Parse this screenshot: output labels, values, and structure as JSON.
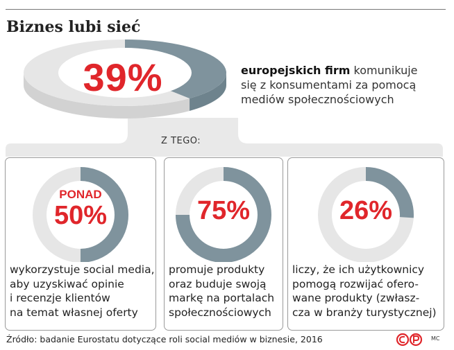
{
  "title": "Biznes lubi sieć",
  "main": {
    "percent": "39%",
    "value": 39,
    "desc_bold": "europejskich firm",
    "desc_rest": " komunikuje",
    "desc_line2": "się z konsumentami za pomocą",
    "desc_line3": "mediów społecznościowych"
  },
  "subheader": "Z TEGO:",
  "panels": [
    {
      "prefix": "PONAD",
      "percent": "50%",
      "value": 50,
      "lines": [
        "wykorzystuje social media,",
        "aby uzyskiwać opinie",
        "i recenzje klientów",
        "na temat własnej oferty"
      ]
    },
    {
      "prefix": "",
      "percent": "75%",
      "value": 75,
      "lines": [
        "promuje produkty",
        "oraz buduje swoją",
        "markę na portalach",
        "społecznościowych"
      ]
    },
    {
      "prefix": "",
      "percent": "26%",
      "value": 26,
      "lines": [
        "liczy, że ich użytkownicy",
        "pomogą rozwijać ofero-",
        "wane produkty (zwłasz-",
        "cza w branży turystycznej)"
      ]
    }
  ],
  "source": "Źródło: badanie Eurostatu dotyczące roli social mediów w biznesie, 2016",
  "credit": "MC",
  "colors": {
    "accent": "#e0262b",
    "filled": "#7f939d",
    "empty": "#e6e6e6",
    "panel_bg": "#e9e9e9"
  },
  "chart_data": [
    {
      "type": "pie",
      "values": [
        39,
        61
      ],
      "categories": [
        "europejskich firm komunikuje się z konsumentami za pomocą mediów społecznościowych",
        ""
      ],
      "title": "Biznes lubi sieć"
    },
    {
      "type": "pie",
      "values": [
        50,
        50
      ],
      "categories": [
        "wykorzystuje social media, aby uzyskiwać opinie i recenzje klientów na temat własnej oferty",
        ""
      ]
    },
    {
      "type": "pie",
      "values": [
        75,
        25
      ],
      "categories": [
        "promuje produkty oraz buduje swoją markę na portalach społecznościowych",
        ""
      ]
    },
    {
      "type": "pie",
      "values": [
        26,
        74
      ],
      "categories": [
        "liczy, że ich użytkownicy pomogą rozwijać oferowane produkty (zwłaszcza w branży turystycznej)",
        ""
      ]
    }
  ]
}
